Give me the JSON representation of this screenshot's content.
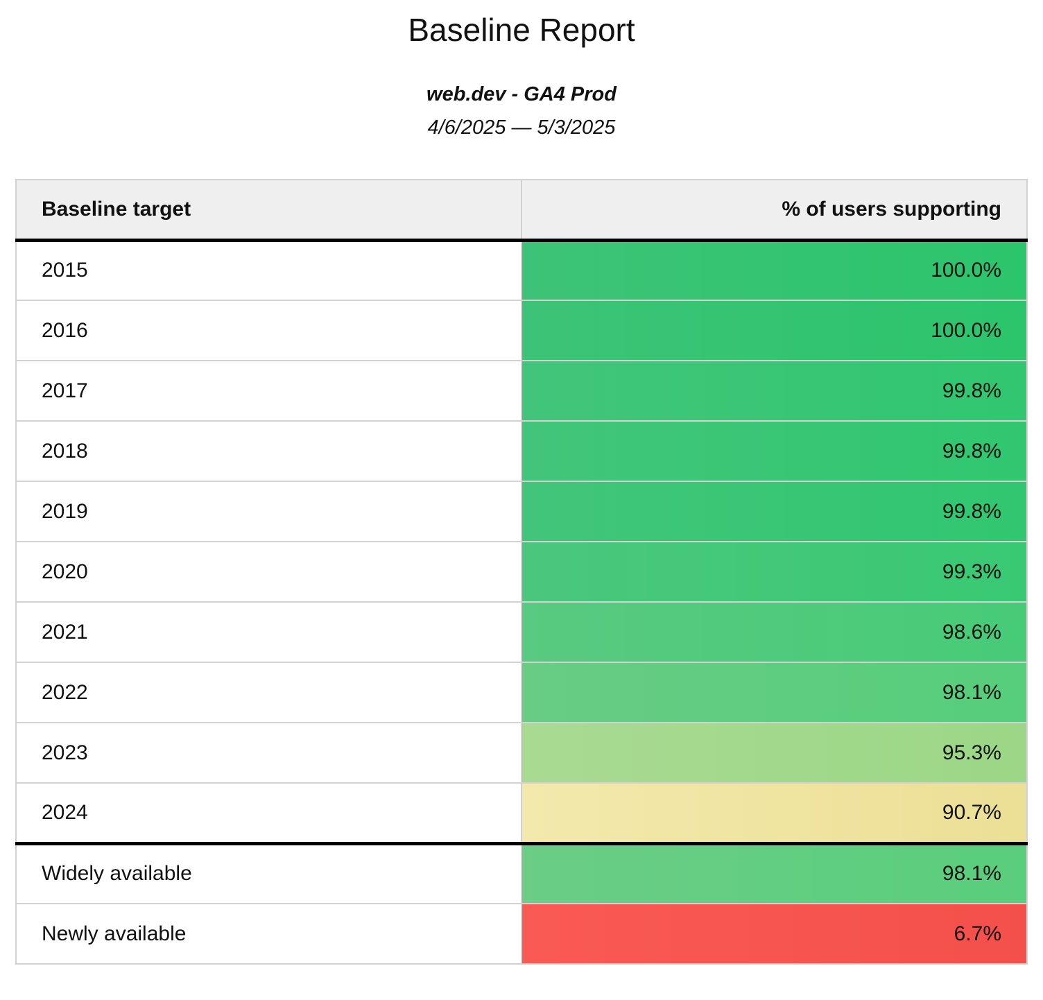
{
  "page": {
    "title": "Baseline Report",
    "subtitle": "web.dev - GA4 Prod",
    "date_range": "4/6/2025 — 5/3/2025"
  },
  "table": {
    "columns": {
      "target": "Baseline target",
      "support": "% of users supporting"
    },
    "rows": [
      {
        "label": "2015",
        "value": "100.0%",
        "color_from": "#3dc377",
        "color_to": "#2bc56c"
      },
      {
        "label": "2016",
        "value": "100.0%",
        "color_from": "#3dc377",
        "color_to": "#2bc56c"
      },
      {
        "label": "2017",
        "value": "99.8%",
        "color_from": "#42c57a",
        "color_to": "#30c770"
      },
      {
        "label": "2018",
        "value": "99.8%",
        "color_from": "#42c57a",
        "color_to": "#30c770"
      },
      {
        "label": "2019",
        "value": "99.8%",
        "color_from": "#42c57a",
        "color_to": "#30c770"
      },
      {
        "label": "2020",
        "value": "99.3%",
        "color_from": "#4bc77d",
        "color_to": "#39c973"
      },
      {
        "label": "2021",
        "value": "98.6%",
        "color_from": "#59ca81",
        "color_to": "#47cb77"
      },
      {
        "label": "2022",
        "value": "98.1%",
        "color_from": "#68cc85",
        "color_to": "#56ce7b"
      },
      {
        "label": "2023",
        "value": "95.3%",
        "color_from": "#a9da92",
        "color_to": "#9bd786"
      },
      {
        "label": "2024",
        "value": "90.7%",
        "color_from": "#f3e9ac",
        "color_to": "#ecdf96"
      },
      {
        "label": "Widely available",
        "value": "98.1%",
        "color_from": "#6bcd86",
        "color_to": "#59ce7c"
      },
      {
        "label": "Newly available",
        "value": "6.7%",
        "color_from": "#fa5a54",
        "color_to": "#f4504b"
      }
    ]
  },
  "chart_data": {
    "type": "table",
    "title": "Baseline Report",
    "subtitle": "web.dev - GA4 Prod",
    "date_range": "4/6/2025 — 5/3/2025",
    "columns": [
      "Baseline target",
      "% of users supporting"
    ],
    "categories": [
      "2015",
      "2016",
      "2017",
      "2018",
      "2019",
      "2020",
      "2021",
      "2022",
      "2023",
      "2024",
      "Widely available",
      "Newly available"
    ],
    "values": [
      100.0,
      100.0,
      99.8,
      99.8,
      99.8,
      99.3,
      98.6,
      98.1,
      95.3,
      90.7,
      98.1,
      6.7
    ],
    "value_unit": "%",
    "color_scale": {
      "high_color": "#2bc56c",
      "mid_color": "#f3e9ac",
      "low_color": "#f4504b"
    }
  }
}
